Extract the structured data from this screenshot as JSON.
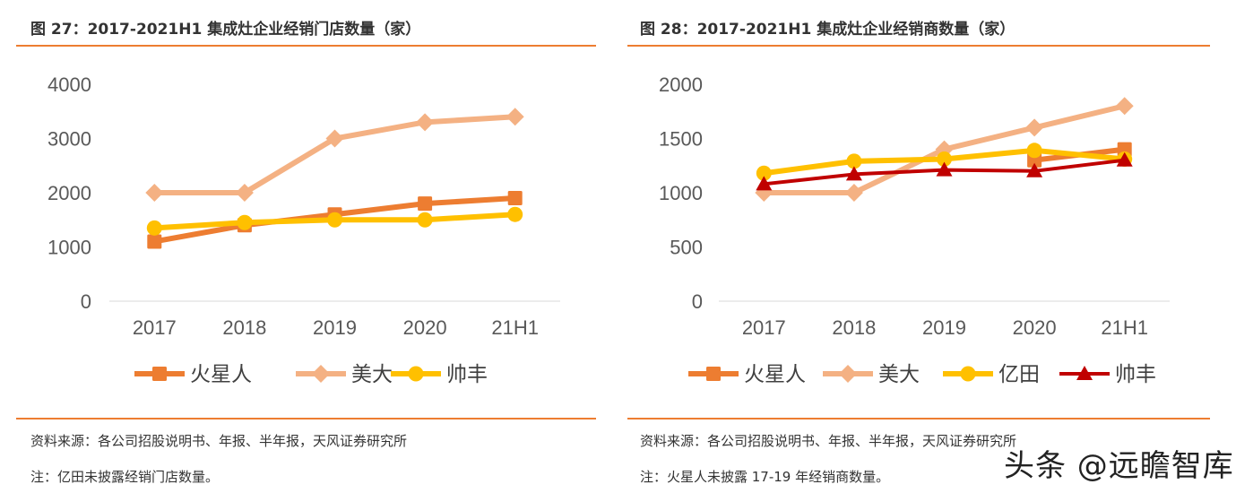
{
  "chart_data": [
    {
      "type": "line",
      "title": "图 27：2017-2021H1 集成灶企业经销门店数量（家）",
      "categories": [
        "2017",
        "2018",
        "2019",
        "2020",
        "21H1"
      ],
      "yticks": [
        "0",
        "1000",
        "2000",
        "3000",
        "4000"
      ],
      "ylim": [
        0,
        4000
      ],
      "grid": false,
      "legend": "bottom",
      "series": [
        {
          "name": "火星人",
          "color": "#ED7D31",
          "marker": "square",
          "values": [
            1100,
            1400,
            1600,
            1800,
            1900
          ]
        },
        {
          "name": "美大",
          "color": "#F4B183",
          "marker": "diamond",
          "values": [
            2000,
            2000,
            3000,
            3300,
            3400
          ]
        },
        {
          "name": "帅丰",
          "color": "#FFC000",
          "marker": "circle",
          "values": [
            1350,
            1450,
            1500,
            1500,
            1600
          ]
        }
      ],
      "source": "资料来源：各公司招股说明书、年报、半年报，天风证券研究所",
      "note": "注：亿田未披露经销门店数量。"
    },
    {
      "type": "line",
      "title": "图 28：2017-2021H1 集成灶企业经销商数量（家）",
      "categories": [
        "2017",
        "2018",
        "2019",
        "2020",
        "21H1"
      ],
      "yticks": [
        "0",
        "500",
        "1000",
        "1500",
        "2000"
      ],
      "ylim": [
        0,
        2000
      ],
      "grid": false,
      "legend": "bottom",
      "series": [
        {
          "name": "火星人",
          "color": "#ED7D31",
          "marker": "square",
          "values": [
            null,
            null,
            null,
            1300,
            1400
          ]
        },
        {
          "name": "美大",
          "color": "#F4B183",
          "marker": "diamond",
          "values": [
            1000,
            1000,
            1400,
            1600,
            1800
          ]
        },
        {
          "name": "亿田",
          "color": "#FFC000",
          "marker": "circle",
          "values": [
            1180,
            1290,
            1310,
            1390,
            1310
          ]
        },
        {
          "name": "帅丰",
          "color": "#C00000",
          "marker": "triangle",
          "values": [
            1080,
            1170,
            1210,
            1200,
            1300
          ]
        }
      ],
      "source": "资料来源：各公司招股说明书、年报、半年报，天风证券研究所",
      "note": "注：火星人未披露 17-19 年经销商数量。"
    }
  ],
  "watermark": "头条 @远瞻智库"
}
